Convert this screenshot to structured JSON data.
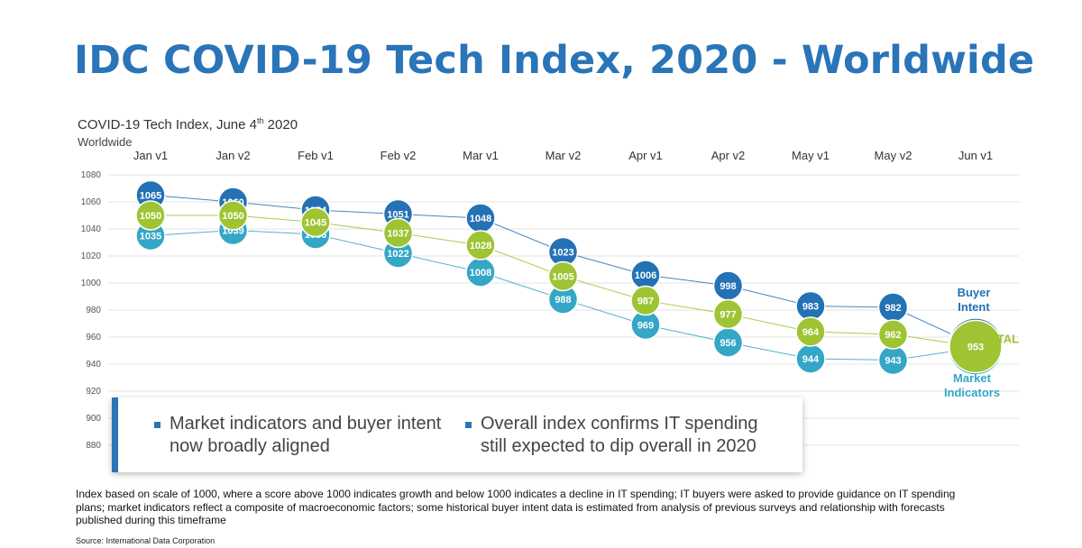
{
  "header": {
    "title": "IDC COVID-19 Tech Index, 2020 - Worldwide"
  },
  "chart_header": {
    "subtitle_main": "COVID-19 Tech Index, June 4",
    "subtitle_sup": "th",
    "subtitle_year": " 2020",
    "region": "Worldwide"
  },
  "chart_data": {
    "type": "line",
    "title": "COVID-19 Tech Index, June 4th 2020",
    "categories": [
      "Jan v1",
      "Jan v2",
      "Feb v1",
      "Feb v2",
      "Mar v1",
      "Mar v2",
      "Apr v1",
      "Apr v2",
      "May v1",
      "May v2",
      "Jun v1"
    ],
    "ylim": [
      880,
      1080
    ],
    "yticks": [
      880,
      900,
      920,
      940,
      960,
      980,
      1000,
      1020,
      1040,
      1060,
      1080
    ],
    "grid": true,
    "series": [
      {
        "name": "Buyer Intent",
        "label_lines": [
          "Buyer",
          "Intent"
        ],
        "color": "#2471b5",
        "values": [
          1065,
          1060,
          1054,
          1051,
          1048,
          1023,
          1006,
          998,
          983,
          982,
          954
        ]
      },
      {
        "name": "TOTAL",
        "label_lines": [
          "TOTAL"
        ],
        "color": "#9ec433",
        "values": [
          1050,
          1050,
          1045,
          1037,
          1028,
          1005,
          987,
          977,
          964,
          962,
          953
        ]
      },
      {
        "name": "Market Indicators",
        "label_lines": [
          "Market",
          "Indicators"
        ],
        "color": "#34a6c6",
        "values": [
          1035,
          1039,
          1036,
          1022,
          1008,
          988,
          969,
          956,
          944,
          943,
          952
        ]
      }
    ]
  },
  "callout": {
    "bullet1": "Market indicators and buyer intent now broadly aligned",
    "bullet2": "Overall index confirms IT spending still expected to dip overall in 2020"
  },
  "footnote": "Index based on scale of 1000, where a score above 1000 indicates growth and below 1000 indicates a decline in IT spending; IT buyers were asked to provide guidance on IT spending plans; market indicators reflect a composite of macroeconomic factors; some historical buyer intent data is estimated from analysis of previous surveys and relationship with forecasts published during this timeframe",
  "source": "Source: International Data Corporation"
}
